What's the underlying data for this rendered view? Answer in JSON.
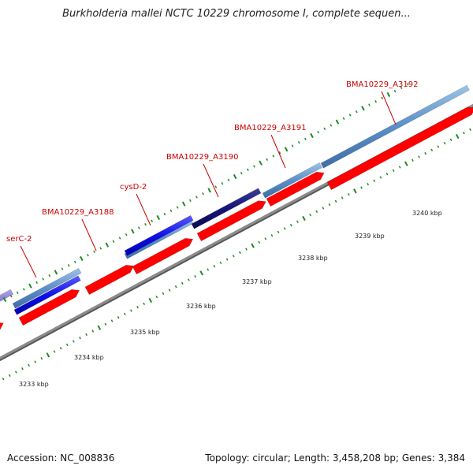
{
  "title": "Burkholderia mallei NCTC 10229 chromosome I, complete sequen...",
  "footer": {
    "accession": "Accession: NC_008836",
    "summary": "Topology: circular; Length: 3,458,208 bp; Genes: 3,384"
  },
  "colors": {
    "backbone": "#8c8c8c",
    "cds": "#ff0000",
    "tick": "#1f8a1f",
    "label": "#cc0000"
  },
  "scale_labels": [
    "3233 kbp",
    "3234 kbp",
    "3235 kbp",
    "3236 kbp",
    "3237 kbp",
    "3238 kbp",
    "3239 kbp",
    "3240 kbp"
  ],
  "gene_labels": [
    "serC-2",
    "BMA10229_A3188",
    "cysD-2",
    "BMA10229_A3190",
    "BMA10229_A3191",
    "BMA10229_A3192"
  ]
}
